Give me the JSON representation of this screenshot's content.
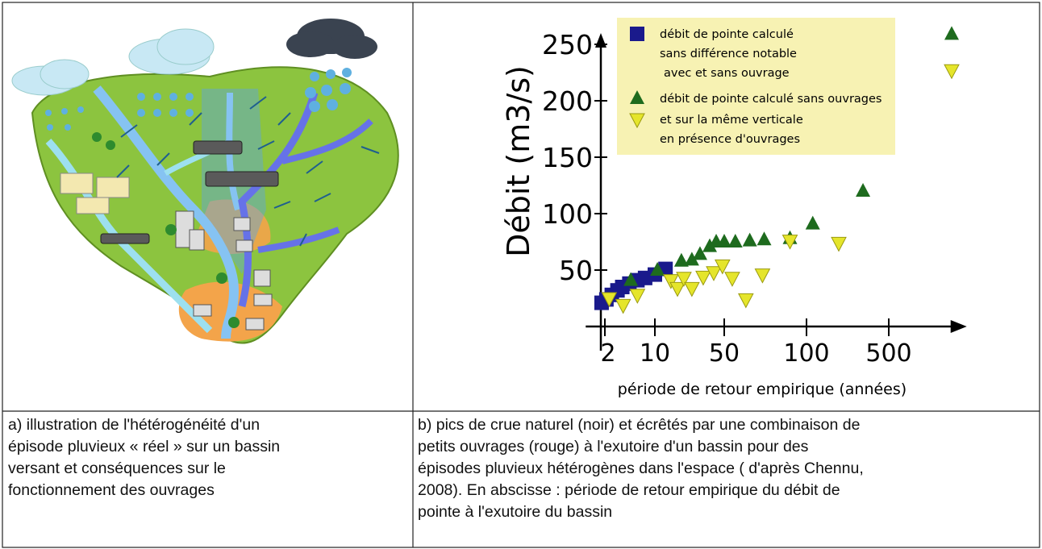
{
  "chart_data": {
    "type": "scatter",
    "ylabel": "Débit (m3/s)",
    "xlabel": "période de retour empirique (années)",
    "xlim": [
      1.4,
      2300
    ],
    "ylim": [
      0,
      260
    ],
    "xticks": [
      2,
      10,
      50,
      100,
      500
    ],
    "yticks": [
      50,
      100,
      150,
      200,
      250
    ],
    "series": [
      {
        "name": [
          "débit de pointe calculé",
          "sans différence notable",
          "avec et sans ouvrage"
        ],
        "marker": "square",
        "color": "#1a1a8c",
        "x": [
          1.8,
          2.1,
          2.5,
          3.0,
          3.5,
          4.4,
          5.7,
          7.3,
          10,
          12.8
        ],
        "values": [
          21,
          24,
          28,
          32,
          35,
          38,
          41,
          43,
          46,
          51
        ]
      },
      {
        "name": [
          "débit de pointe calculé sans ouvrages"
        ],
        "marker": "triangle-up",
        "color": "#1e6b1e",
        "x": [
          4.6,
          10.6,
          18.5,
          23.6,
          28.5,
          35.7,
          41.5,
          50,
          54.9,
          62,
          70,
          87,
          113,
          302,
          1712
        ],
        "values": [
          41,
          50,
          58,
          59,
          64,
          71,
          75,
          75,
          75,
          76,
          77,
          78,
          91,
          120,
          259
        ]
      },
      {
        "name": [
          "et sur la même verticale",
          "en présence d'ouvrages"
        ],
        "marker": "triangle-down",
        "color": "#e5e52b",
        "x": [
          2.3,
          3.6,
          5.7,
          14.5,
          16.9,
          19.6,
          23.6,
          30.7,
          39.2,
          48,
          53.5,
          60,
          69,
          87,
          188,
          1712
        ],
        "values": [
          25,
          19,
          28,
          41,
          34,
          43,
          34,
          44,
          48,
          54,
          43,
          24,
          46,
          76,
          74,
          227
        ]
      }
    ]
  },
  "table": {
    "rows": [
      [
        [
          "a) illustration de l'hétérogénéité d'un",
          "épisode pluvieux « réel » sur un bassin",
          "versant et conséquences sur le",
          "fonctionnement des ouvrages"
        ],
        [
          "b) pics de crue naturel (noir) et écrêtés par une combinaison de",
          "petits ouvrages (rouge) à l'exutoire d'un bassin pour des",
          "épisodes pluvieux hétérogènes dans l'espace ( d'après Chennu,",
          "2008). En abscisse : période de retour empirique du débit de",
          "pointe à l'exutoire du bassin"
        ]
      ]
    ]
  }
}
